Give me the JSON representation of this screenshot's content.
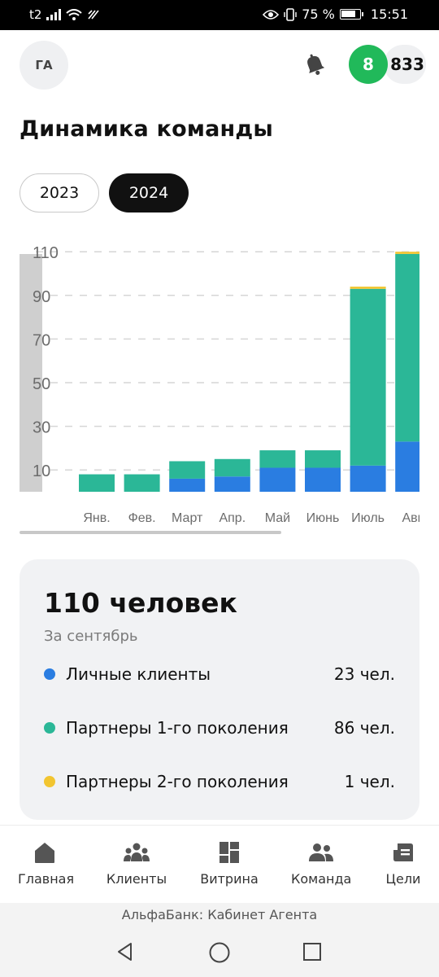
{
  "status_bar": {
    "carrier": "t2",
    "battery_percent": "75 %",
    "time": "15:51"
  },
  "header": {
    "avatar_initials": "ГА",
    "green_badge": "8",
    "points_badge": "833"
  },
  "title": "Динамика команды",
  "year_tabs": [
    {
      "label": "2023",
      "active": false
    },
    {
      "label": "2024",
      "active": true
    }
  ],
  "chart_data": {
    "type": "bar",
    "stacked": true,
    "y_ticks": [
      "110",
      "90",
      "70",
      "50",
      "30",
      "10"
    ],
    "categories": [
      "Янв.",
      "Фев.",
      "Март",
      "Апр.",
      "Май",
      "Июнь",
      "Июль",
      "Авг."
    ],
    "series": [
      {
        "name": "Личные клиенты",
        "color": "#2a7de1",
        "values": [
          0,
          0,
          6,
          7,
          11,
          11,
          12,
          23
        ]
      },
      {
        "name": "Партнеры 1-го поколения",
        "color": "#2bb797",
        "values": [
          8,
          8,
          8,
          8,
          8,
          8,
          81,
          86
        ]
      },
      {
        "name": "Партнеры 2-го поколения",
        "color": "#f2c530",
        "values": [
          0,
          0,
          0,
          0,
          0,
          0,
          1,
          1
        ]
      }
    ],
    "ylim": [
      0,
      110
    ]
  },
  "summary": {
    "title": "110 человек",
    "subtitle": "За сентябрь",
    "rows": [
      {
        "label": "Личные клиенты",
        "value": "23 чел.",
        "color": "#2a7de1"
      },
      {
        "label": "Партнеры 1-го поколения",
        "value": "86 чел.",
        "color": "#2bb797"
      },
      {
        "label": "Партнеры 2-го поколения",
        "value": "1 чел.",
        "color": "#f2c530"
      }
    ]
  },
  "bottom_nav": [
    {
      "label": "Главная",
      "icon": "home-icon"
    },
    {
      "label": "Клиенты",
      "icon": "clients-icon"
    },
    {
      "label": "Витрина",
      "icon": "showcase-icon"
    },
    {
      "label": "Команда",
      "icon": "team-icon"
    },
    {
      "label": "Цели",
      "icon": "goals-icon"
    }
  ],
  "app_caption": "АльфаБанк: Кабинет Агента"
}
